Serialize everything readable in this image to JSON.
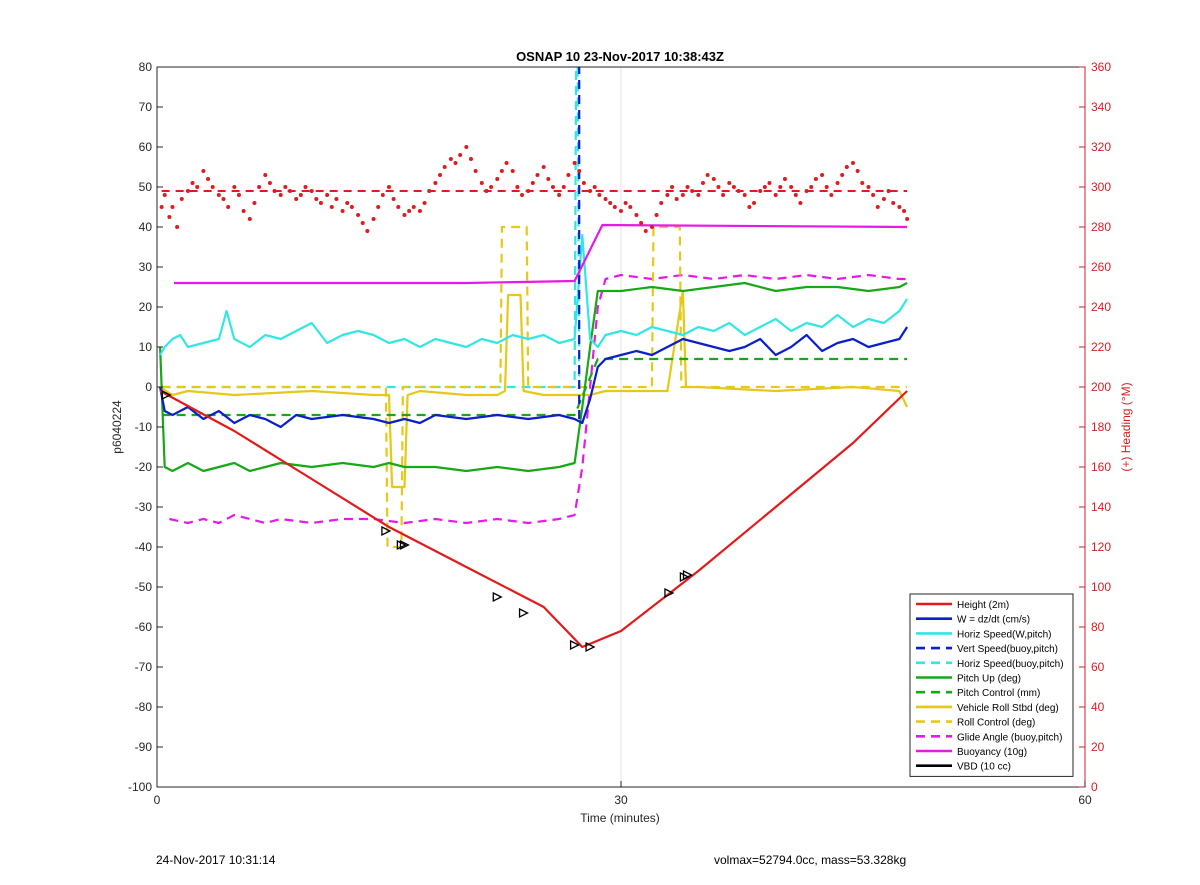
{
  "footer": {
    "left": "24-Nov-2017 10:31:14",
    "right": "volmax=52794.0cc, mass=53.328kg"
  },
  "chart_data": {
    "type": "line",
    "title": "OSNAP 10 23-Nov-2017 10:38:43Z",
    "xlabel": "Time (minutes)",
    "ylabel": "p6040224",
    "y2label": "(+) Heading (°M)",
    "xlim": [
      0,
      60
    ],
    "ylim": [
      -100,
      80
    ],
    "y2lim": [
      0,
      360
    ],
    "xticks": [
      0,
      30,
      60
    ],
    "yticks": [
      -100,
      -90,
      -80,
      -70,
      -60,
      -50,
      -40,
      -30,
      -20,
      -10,
      0,
      10,
      20,
      30,
      40,
      50,
      60,
      70,
      80
    ],
    "y2ticks": [
      0,
      20,
      40,
      60,
      80,
      100,
      120,
      140,
      160,
      180,
      200,
      220,
      240,
      260,
      280,
      300,
      320,
      340,
      360
    ],
    "grid": "x-only",
    "legend_position": "bottom-right",
    "colors": {
      "red": "#e31a1c",
      "blue": "#0a1fc8",
      "cyan": "#33e6e6",
      "green": "#16a816",
      "yellow": "#e6c81a",
      "magenta": "#e619e6",
      "black": "#000000",
      "heading_axis": "#d42020"
    },
    "series": [
      {
        "name": "Height (2m)",
        "color": "#e31a1c",
        "style": "solid",
        "x": [
          0.2,
          5,
          10,
          15,
          20,
          25,
          27.5,
          30,
          35,
          40,
          45,
          48.5
        ],
        "y": [
          -1,
          -11,
          -23,
          -35,
          -45,
          -55,
          -65,
          -61,
          -46,
          -30,
          -14,
          -1
        ]
      },
      {
        "name": "W = dz/dt (cm/s)",
        "color": "#0a1fc8",
        "style": "solid",
        "x": [
          0.2,
          0.5,
          1,
          2,
          3,
          4,
          5,
          6,
          7,
          8,
          9,
          10,
          12,
          14,
          15,
          16,
          17,
          18,
          20,
          22,
          24,
          26,
          27,
          27.5,
          28,
          28.5,
          29,
          30,
          31,
          32,
          33,
          34,
          35,
          36,
          37,
          38,
          39,
          40,
          41,
          42,
          43,
          44,
          45,
          46,
          47,
          48,
          48.5
        ],
        "y": [
          0,
          -6,
          -7,
          -5,
          -8,
          -6,
          -9,
          -7,
          -8,
          -10,
          -7,
          -8,
          -7,
          -8,
          -9,
          -8,
          -9,
          -7,
          -8,
          -7,
          -8,
          -7,
          -8,
          -9,
          -3,
          5,
          7,
          8,
          9,
          8,
          10,
          12,
          11,
          10,
          9,
          10,
          12,
          8,
          10,
          13,
          9,
          11,
          12,
          10,
          11,
          12,
          15
        ]
      },
      {
        "name": "Horiz Speed(W,pitch)",
        "color": "#33e6e6",
        "style": "solid",
        "x": [
          0.2,
          0.5,
          1,
          1.5,
          2,
          3,
          4,
          4.5,
          5,
          6,
          7,
          8,
          9,
          10,
          11,
          12,
          13,
          14,
          15,
          16,
          17,
          18,
          19,
          20,
          21,
          22,
          23,
          24,
          25,
          26,
          27,
          27.5,
          28,
          28.5,
          29,
          30,
          31,
          32,
          33,
          34,
          35,
          36,
          37,
          38,
          39,
          40,
          41,
          42,
          43,
          44,
          45,
          46,
          47,
          48,
          48.5
        ],
        "y": [
          8,
          10,
          12,
          13,
          10,
          11,
          12,
          19,
          12,
          10,
          13,
          12,
          14,
          16,
          11,
          13,
          14,
          13,
          11,
          12,
          10,
          12,
          11,
          10,
          12,
          11,
          13,
          12,
          13,
          11,
          12,
          38,
          12,
          10,
          13,
          14,
          13,
          15,
          14,
          13,
          15,
          14,
          16,
          13,
          15,
          17,
          14,
          16,
          15,
          18,
          15,
          17,
          16,
          19,
          22
        ]
      },
      {
        "name": "Vert Speed(buoy,pitch)",
        "color": "#0a1fc8",
        "style": "dashed",
        "x": [
          27.3,
          27.3
        ],
        "y": [
          -8,
          80
        ]
      },
      {
        "name": "Horiz Speed(buoy,pitch)",
        "color": "#33e6e6",
        "style": "dashed",
        "x": [
          0.3,
          27.0,
          27.1,
          27.2,
          27.3
        ],
        "y": [
          0,
          0,
          80,
          80,
          0
        ]
      },
      {
        "name": "Pitch Up (deg)",
        "color": "#16a816",
        "style": "solid",
        "x": [
          0.2,
          0.5,
          1,
          2,
          3,
          4,
          5,
          6,
          7,
          8,
          10,
          12,
          14,
          15,
          16,
          18,
          20,
          22,
          24,
          26,
          27,
          27.5,
          28,
          28.5,
          29,
          30,
          32,
          34,
          36,
          38,
          40,
          42,
          44,
          46,
          48,
          48.5
        ],
        "y": [
          10,
          -20,
          -21,
          -19,
          -21,
          -20,
          -19,
          -21,
          -20,
          -19,
          -20,
          -19,
          -20,
          -19,
          -20,
          -20,
          -21,
          -20,
          -21,
          -20,
          -19,
          -5,
          10,
          24,
          24,
          24,
          25,
          24,
          25,
          26,
          24,
          25,
          25,
          24,
          25,
          26
        ]
      },
      {
        "name": "Pitch Control (mm)",
        "color": "#16a816",
        "style": "dashed",
        "x": [
          0.3,
          27.0,
          28.5,
          48.5
        ],
        "y": [
          -7,
          -7,
          7,
          7
        ]
      },
      {
        "name": "Vehicle Roll Stbd (deg)",
        "color": "#e6c81a",
        "style": "solid",
        "x": [
          0.2,
          1,
          2,
          5,
          10,
          14,
          15,
          15.2,
          16,
          16.2,
          17,
          20,
          22,
          22.5,
          22.7,
          23.5,
          23.7,
          25,
          27,
          28,
          29,
          30,
          32,
          33,
          34,
          34.2,
          35,
          40,
          45,
          48,
          48.5
        ],
        "y": [
          0,
          -2,
          -1,
          -2,
          -1,
          -2,
          -2,
          -25,
          -25,
          -2,
          -1,
          -2,
          -2,
          -1,
          23,
          23,
          -1,
          -2,
          -2,
          -2,
          -1,
          -1,
          -1,
          -1,
          24,
          0,
          0,
          -1,
          0,
          -1,
          -5
        ]
      },
      {
        "name": "Roll Control (deg)",
        "color": "#e6c81a",
        "style": "dashed",
        "x": [
          0.3,
          14.8,
          14.9,
          15.8,
          15.9,
          22.2,
          22.3,
          23.9,
          24.0,
          32.0,
          32.1,
          33.8,
          33.9,
          48.5
        ],
        "y": [
          0,
          0,
          -40,
          -40,
          0,
          0,
          40,
          40,
          0,
          0,
          40,
          40,
          0,
          0
        ]
      },
      {
        "name": "Glide Angle (buoy,pitch)",
        "color": "#e619e6",
        "style": "dashed",
        "x": [
          0.8,
          2,
          3,
          4,
          5,
          6,
          7,
          8,
          10,
          12,
          14,
          16,
          18,
          20,
          22,
          24,
          26,
          27,
          27.5,
          28,
          28.5,
          29,
          30,
          32,
          34,
          36,
          38,
          40,
          42,
          44,
          46,
          48,
          48.5
        ],
        "y": [
          -33,
          -34,
          -33,
          -34,
          -32,
          -33,
          -34,
          -33,
          -34,
          -33,
          -33,
          -34,
          -33,
          -34,
          -33,
          -34,
          -33,
          -32,
          -20,
          0,
          20,
          27,
          28,
          27,
          28,
          27,
          28,
          27,
          28,
          27,
          28,
          27,
          27
        ]
      },
      {
        "name": "Buoyancy (10g)",
        "color": "#e619e6",
        "style": "solid",
        "x": [
          1.1,
          10,
          20,
          27.0,
          28.8,
          48.5
        ],
        "y": [
          26,
          26,
          26,
          26.5,
          40.5,
          40
        ]
      },
      {
        "name": "VBD (10 cc)",
        "color": "#000000",
        "style": "solid",
        "x": [
          0.2,
          0.8,
          27.0,
          29.0,
          48.5
        ],
        "y": [
          -1,
          -7,
          -7,
          7,
          7
        ]
      }
    ],
    "heading_series": {
      "name": "Heading",
      "axis": "right",
      "color": "#e31a1c",
      "marker": "dots",
      "target_line": 298,
      "x": [
        0.3,
        0.5,
        0.8,
        1.0,
        1.3,
        1.6,
        2.0,
        2.3,
        2.6,
        3.0,
        3.3,
        3.6,
        4.0,
        4.3,
        4.6,
        5.0,
        5.3,
        5.6,
        6.0,
        6.3,
        6.6,
        7.0,
        7.3,
        7.6,
        8.0,
        8.3,
        8.6,
        9.0,
        9.3,
        9.6,
        10.0,
        10.3,
        10.6,
        11.0,
        11.3,
        11.6,
        12.0,
        12.3,
        12.6,
        13.0,
        13.3,
        13.6,
        14.0,
        14.3,
        14.6,
        15.0,
        15.3,
        15.6,
        16.0,
        16.3,
        16.6,
        17.0,
        17.3,
        17.6,
        18.0,
        18.3,
        18.6,
        19.0,
        19.3,
        19.6,
        20.0,
        20.3,
        20.6,
        21.0,
        21.3,
        21.6,
        22.0,
        22.3,
        22.6,
        23.0,
        23.3,
        23.6,
        24.0,
        24.3,
        24.6,
        25.0,
        25.3,
        25.6,
        26.0,
        26.3,
        26.6,
        27.0,
        27.3,
        27.6,
        28.0,
        28.3,
        28.6,
        29.0,
        29.3,
        29.6,
        30.0,
        30.3,
        30.6,
        31.0,
        31.3,
        31.6,
        32.0,
        32.3,
        32.6,
        33.0,
        33.3,
        33.6,
        34.0,
        34.3,
        34.6,
        35.0,
        35.3,
        35.6,
        36.0,
        36.3,
        36.6,
        37.0,
        37.3,
        37.6,
        38.0,
        38.3,
        38.6,
        39.0,
        39.3,
        39.6,
        40.0,
        40.3,
        40.6,
        41.0,
        41.3,
        41.6,
        42.0,
        42.3,
        42.6,
        43.0,
        43.3,
        43.6,
        44.0,
        44.3,
        44.6,
        45.0,
        45.3,
        45.6,
        46.0,
        46.3,
        46.6,
        47.0,
        47.3,
        47.6,
        48.0,
        48.3,
        48.5
      ],
      "y": [
        290,
        296,
        285,
        290,
        280,
        294,
        298,
        302,
        300,
        308,
        304,
        300,
        296,
        294,
        290,
        300,
        296,
        288,
        284,
        292,
        300,
        306,
        302,
        298,
        296,
        300,
        298,
        294,
        296,
        300,
        298,
        294,
        292,
        296,
        290,
        294,
        288,
        292,
        290,
        286,
        282,
        278,
        284,
        290,
        296,
        300,
        294,
        290,
        286,
        288,
        290,
        288,
        292,
        298,
        302,
        306,
        310,
        314,
        312,
        316,
        320,
        314,
        308,
        302,
        298,
        300,
        304,
        308,
        312,
        308,
        300,
        296,
        298,
        302,
        306,
        310,
        304,
        300,
        296,
        300,
        306,
        312,
        308,
        302,
        298,
        300,
        296,
        294,
        292,
        290,
        288,
        292,
        290,
        286,
        282,
        278,
        280,
        286,
        292,
        296,
        300,
        294,
        296,
        300,
        298,
        296,
        302,
        306,
        304,
        300,
        296,
        302,
        300,
        298,
        296,
        290,
        292,
        298,
        300,
        302,
        296,
        300,
        304,
        300,
        296,
        292,
        298,
        300,
        304,
        306,
        300,
        296,
        302,
        306,
        310,
        312,
        308,
        302,
        300,
        296,
        290,
        294,
        298,
        292,
        290,
        288,
        284
      ]
    },
    "annotations": [
      {
        "type": "triangle-marker",
        "x": 0.6,
        "y": -2
      },
      {
        "type": "triangle-marker",
        "x": 14.8,
        "y": -36
      },
      {
        "type": "triangle-marker",
        "x": 15.8,
        "y": -39.5
      },
      {
        "type": "triangle-marker",
        "x": 16.0,
        "y": -39.5
      },
      {
        "type": "triangle-marker",
        "x": 22.0,
        "y": -52.5
      },
      {
        "type": "triangle-marker",
        "x": 23.7,
        "y": -56.5
      },
      {
        "type": "triangle-marker",
        "x": 27.0,
        "y": -64.5
      },
      {
        "type": "triangle-marker",
        "x": 28.0,
        "y": -65
      },
      {
        "type": "triangle-marker",
        "x": 33.1,
        "y": -51.5
      },
      {
        "type": "triangle-marker",
        "x": 34.1,
        "y": -47.5
      },
      {
        "type": "triangle-marker",
        "x": 34.3,
        "y": -47
      }
    ]
  }
}
